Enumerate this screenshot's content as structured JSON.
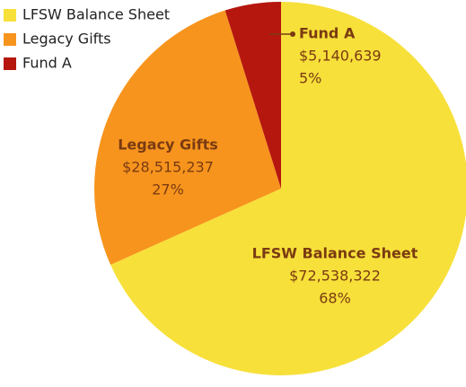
{
  "chart_data": {
    "type": "pie",
    "categories": [
      "LFSW Balance Sheet",
      "Legacy Gifts",
      "Fund A"
    ],
    "values": [
      72538322,
      28515237,
      5140639
    ],
    "value_labels": [
      "$72,538,322",
      "$28,515,237",
      "$5,140,639"
    ],
    "percent_labels": [
      "68%",
      "27%",
      "5%"
    ],
    "colors": [
      "#f7e03a",
      "#f7941d",
      "#b5170f"
    ],
    "legend": "top-left"
  }
}
